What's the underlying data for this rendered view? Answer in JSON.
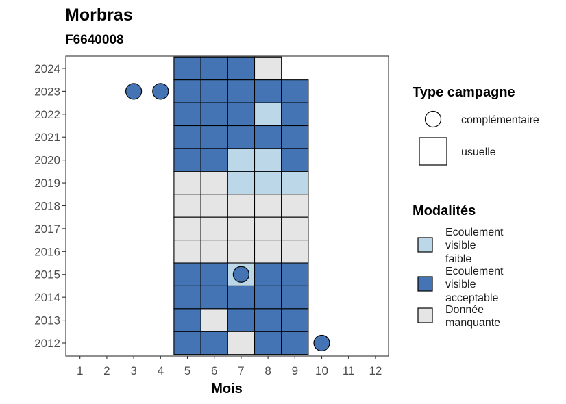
{
  "chart_data": {
    "type": "heatmap",
    "title": "Morbras",
    "subtitle": "F6640008",
    "xlabel": "Mois",
    "ylabel": "",
    "x_ticks": [
      1,
      2,
      3,
      4,
      5,
      6,
      7,
      8,
      9,
      10,
      11,
      12
    ],
    "y_ticks": [
      2012,
      2013,
      2014,
      2015,
      2016,
      2017,
      2018,
      2019,
      2020,
      2021,
      2022,
      2023,
      2024
    ],
    "grid": false,
    "legend_position": "right",
    "modalite_colors": {
      "Ecoulement visible faible": "#bcd7e8",
      "Ecoulement visible acceptable": "#4574b4",
      "Donnée manquante": "#e5e5e5"
    },
    "legend": {
      "type_campagne": {
        "title": "Type campagne",
        "items": [
          {
            "label": "complémentaire",
            "shape": "circle"
          },
          {
            "label": "usuelle",
            "shape": "square"
          }
        ]
      },
      "modalites": {
        "title": "Modalités",
        "items": [
          {
            "label_lines": [
              "Ecoulement",
              "visible",
              "faible"
            ],
            "modalite": "Ecoulement visible faible"
          },
          {
            "label_lines": [
              "Ecoulement",
              "visible",
              "acceptable"
            ],
            "modalite": "Ecoulement visible acceptable"
          },
          {
            "label_lines": [
              "Donnée",
              "manquante"
            ],
            "modalite": "Donnée manquante"
          }
        ]
      }
    },
    "usuelle": [
      {
        "year": 2024,
        "month": 5,
        "modalite": "Ecoulement visible acceptable"
      },
      {
        "year": 2024,
        "month": 6,
        "modalite": "Ecoulement visible acceptable"
      },
      {
        "year": 2024,
        "month": 7,
        "modalite": "Ecoulement visible acceptable"
      },
      {
        "year": 2024,
        "month": 8,
        "modalite": "Donnée manquante"
      },
      {
        "year": 2023,
        "month": 5,
        "modalite": "Ecoulement visible acceptable"
      },
      {
        "year": 2023,
        "month": 6,
        "modalite": "Ecoulement visible acceptable"
      },
      {
        "year": 2023,
        "month": 7,
        "modalite": "Ecoulement visible acceptable"
      },
      {
        "year": 2023,
        "month": 8,
        "modalite": "Ecoulement visible acceptable"
      },
      {
        "year": 2023,
        "month": 9,
        "modalite": "Ecoulement visible acceptable"
      },
      {
        "year": 2022,
        "month": 5,
        "modalite": "Ecoulement visible acceptable"
      },
      {
        "year": 2022,
        "month": 6,
        "modalite": "Ecoulement visible acceptable"
      },
      {
        "year": 2022,
        "month": 7,
        "modalite": "Ecoulement visible acceptable"
      },
      {
        "year": 2022,
        "month": 8,
        "modalite": "Ecoulement visible faible"
      },
      {
        "year": 2022,
        "month": 9,
        "modalite": "Ecoulement visible acceptable"
      },
      {
        "year": 2021,
        "month": 5,
        "modalite": "Ecoulement visible acceptable"
      },
      {
        "year": 2021,
        "month": 6,
        "modalite": "Ecoulement visible acceptable"
      },
      {
        "year": 2021,
        "month": 7,
        "modalite": "Ecoulement visible acceptable"
      },
      {
        "year": 2021,
        "month": 8,
        "modalite": "Ecoulement visible acceptable"
      },
      {
        "year": 2021,
        "month": 9,
        "modalite": "Ecoulement visible acceptable"
      },
      {
        "year": 2020,
        "month": 5,
        "modalite": "Ecoulement visible acceptable"
      },
      {
        "year": 2020,
        "month": 6,
        "modalite": "Ecoulement visible acceptable"
      },
      {
        "year": 2020,
        "month": 7,
        "modalite": "Ecoulement visible faible"
      },
      {
        "year": 2020,
        "month": 8,
        "modalite": "Ecoulement visible faible"
      },
      {
        "year": 2020,
        "month": 9,
        "modalite": "Ecoulement visible acceptable"
      },
      {
        "year": 2019,
        "month": 5,
        "modalite": "Donnée manquante"
      },
      {
        "year": 2019,
        "month": 6,
        "modalite": "Donnée manquante"
      },
      {
        "year": 2019,
        "month": 7,
        "modalite": "Ecoulement visible faible"
      },
      {
        "year": 2019,
        "month": 8,
        "modalite": "Ecoulement visible faible"
      },
      {
        "year": 2019,
        "month": 9,
        "modalite": "Ecoulement visible faible"
      },
      {
        "year": 2018,
        "month": 5,
        "modalite": "Donnée manquante"
      },
      {
        "year": 2018,
        "month": 6,
        "modalite": "Donnée manquante"
      },
      {
        "year": 2018,
        "month": 7,
        "modalite": "Donnée manquante"
      },
      {
        "year": 2018,
        "month": 8,
        "modalite": "Donnée manquante"
      },
      {
        "year": 2018,
        "month": 9,
        "modalite": "Donnée manquante"
      },
      {
        "year": 2017,
        "month": 5,
        "modalite": "Donnée manquante"
      },
      {
        "year": 2017,
        "month": 6,
        "modalite": "Donnée manquante"
      },
      {
        "year": 2017,
        "month": 7,
        "modalite": "Donnée manquante"
      },
      {
        "year": 2017,
        "month": 8,
        "modalite": "Donnée manquante"
      },
      {
        "year": 2017,
        "month": 9,
        "modalite": "Donnée manquante"
      },
      {
        "year": 2016,
        "month": 5,
        "modalite": "Donnée manquante"
      },
      {
        "year": 2016,
        "month": 6,
        "modalite": "Donnée manquante"
      },
      {
        "year": 2016,
        "month": 7,
        "modalite": "Donnée manquante"
      },
      {
        "year": 2016,
        "month": 8,
        "modalite": "Donnée manquante"
      },
      {
        "year": 2016,
        "month": 9,
        "modalite": "Donnée manquante"
      },
      {
        "year": 2015,
        "month": 5,
        "modalite": "Ecoulement visible acceptable"
      },
      {
        "year": 2015,
        "month": 6,
        "modalite": "Ecoulement visible acceptable"
      },
      {
        "year": 2015,
        "month": 7,
        "modalite": "Ecoulement visible faible"
      },
      {
        "year": 2015,
        "month": 8,
        "modalite": "Ecoulement visible acceptable"
      },
      {
        "year": 2015,
        "month": 9,
        "modalite": "Ecoulement visible acceptable"
      },
      {
        "year": 2014,
        "month": 5,
        "modalite": "Ecoulement visible acceptable"
      },
      {
        "year": 2014,
        "month": 6,
        "modalite": "Ecoulement visible acceptable"
      },
      {
        "year": 2014,
        "month": 7,
        "modalite": "Ecoulement visible acceptable"
      },
      {
        "year": 2014,
        "month": 8,
        "modalite": "Ecoulement visible acceptable"
      },
      {
        "year": 2014,
        "month": 9,
        "modalite": "Ecoulement visible acceptable"
      },
      {
        "year": 2013,
        "month": 5,
        "modalite": "Ecoulement visible acceptable"
      },
      {
        "year": 2013,
        "month": 6,
        "modalite": "Donnée manquante"
      },
      {
        "year": 2013,
        "month": 7,
        "modalite": "Ecoulement visible acceptable"
      },
      {
        "year": 2013,
        "month": 8,
        "modalite": "Ecoulement visible acceptable"
      },
      {
        "year": 2013,
        "month": 9,
        "modalite": "Ecoulement visible acceptable"
      },
      {
        "year": 2012,
        "month": 5,
        "modalite": "Ecoulement visible acceptable"
      },
      {
        "year": 2012,
        "month": 6,
        "modalite": "Ecoulement visible acceptable"
      },
      {
        "year": 2012,
        "month": 7,
        "modalite": "Donnée manquante"
      },
      {
        "year": 2012,
        "month": 8,
        "modalite": "Ecoulement visible acceptable"
      },
      {
        "year": 2012,
        "month": 9,
        "modalite": "Ecoulement visible acceptable"
      }
    ],
    "complementaire": [
      {
        "year": 2023,
        "month": 3,
        "modalite": "Ecoulement visible acceptable"
      },
      {
        "year": 2023,
        "month": 4,
        "modalite": "Ecoulement visible acceptable"
      },
      {
        "year": 2015,
        "month": 7,
        "modalite": "Ecoulement visible acceptable"
      },
      {
        "year": 2012,
        "month": 10,
        "modalite": "Ecoulement visible acceptable"
      }
    ]
  }
}
